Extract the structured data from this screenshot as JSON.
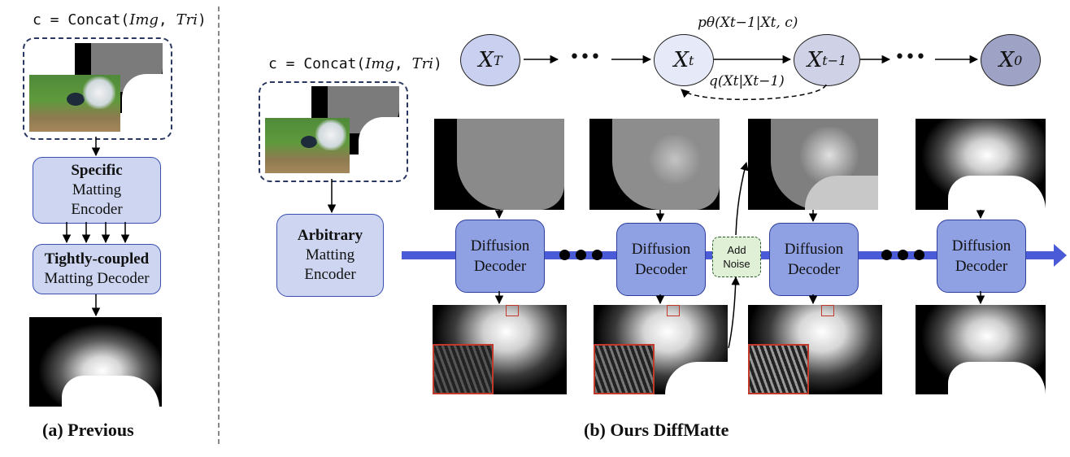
{
  "left": {
    "condition": {
      "prefix": "c = Concat(",
      "img": "Img",
      "sep": ", ",
      "tri": "Tri",
      "suffix": ")"
    },
    "encoder": {
      "bold": "Specific",
      "line2": "Matting",
      "line3": "Encoder"
    },
    "decoder": {
      "bold": "Tightly-coupled",
      "line2": "Matting Decoder"
    },
    "caption": "(a) Previous"
  },
  "right": {
    "condition": {
      "prefix": "c = Concat(",
      "img": "Img",
      "sep": ", ",
      "tri": "Tri",
      "suffix": ")"
    },
    "encoder": {
      "bold": "Arbitrary",
      "line2": "Matting",
      "line3": "Encoder"
    },
    "decoders": [
      {
        "line1": "Diffusion",
        "line2": "Decoder"
      },
      {
        "line1": "Diffusion",
        "line2": "Decoder"
      },
      {
        "line1": "Diffusion",
        "line2": "Decoder"
      },
      {
        "line1": "Diffusion",
        "line2": "Decoder"
      }
    ],
    "add_noise": {
      "line1": "Add",
      "line2": "Noise"
    },
    "caption": "(b) Ours DiffMatte",
    "chain": {
      "nodes": [
        {
          "base": "X",
          "sub": "T",
          "color": "#c9d0f0"
        },
        {
          "base": "X",
          "sub": "t",
          "color": "#e6eaf8"
        },
        {
          "base": "X",
          "sub": "t−1",
          "color": "#cfd2e6"
        },
        {
          "base": "X",
          "sub": "0",
          "color": "#9ea2c4"
        }
      ],
      "forward_label": "pθ(Xt−1|Xt, c)",
      "backward_label": "q(Xt|Xt−1)",
      "ellipsis": "•••"
    }
  }
}
